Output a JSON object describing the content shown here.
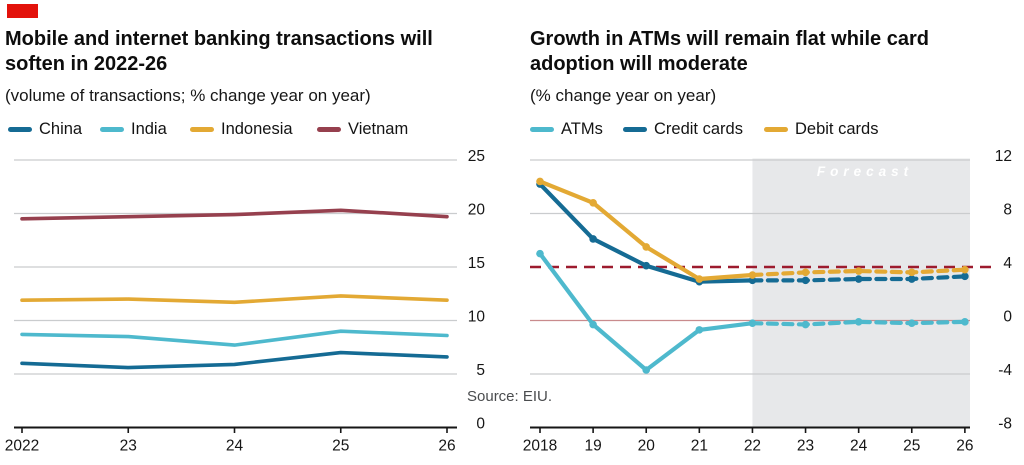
{
  "logo_color": "#E3120B",
  "source": "Source: EIU.",
  "colors": {
    "grid": "#CACCCE",
    "axis": "#161616",
    "forecast_fill": "#E7E8EA"
  },
  "chart_data": [
    {
      "type": "line",
      "title": "Mobile and internet banking transactions will soften in 2022-26",
      "subtitle": "(volume of transactions; % change year on year)",
      "xlabel": "",
      "ylabel": "",
      "categories": [
        "2022",
        "23",
        "24",
        "25",
        "26"
      ],
      "ylim": [
        0,
        25
      ],
      "yticks": [
        0,
        5,
        10,
        15,
        20,
        25
      ],
      "grid": true,
      "legend_position": "top",
      "series": [
        {
          "name": "China",
          "color": "#156B94",
          "values": [
            6.0,
            5.6,
            5.9,
            7.0,
            6.6
          ]
        },
        {
          "name": "India",
          "color": "#4EB9CD",
          "values": [
            8.7,
            8.5,
            7.7,
            9.0,
            8.6
          ]
        },
        {
          "name": "Indonesia",
          "color": "#E3A934",
          "values": [
            11.9,
            12.0,
            11.7,
            12.3,
            11.9
          ]
        },
        {
          "name": "Vietnam",
          "color": "#96404E",
          "values": [
            19.5,
            19.7,
            19.9,
            20.3,
            19.7
          ]
        }
      ]
    },
    {
      "type": "line",
      "title": "Growth in ATMs will remain flat while card adoption will moderate",
      "subtitle": "(% change year on year)",
      "xlabel": "",
      "ylabel": "",
      "categories": [
        "2018",
        "19",
        "20",
        "21",
        "22",
        "23",
        "24",
        "25",
        "26"
      ],
      "ylim": [
        -8,
        12
      ],
      "yticks": [
        -8,
        -4,
        0,
        4,
        8,
        12
      ],
      "grid": true,
      "legend_position": "top",
      "zero_line_color": "#C98B8D",
      "reference_line": {
        "value": 4,
        "color": "#9D1B2E",
        "style": "dashed"
      },
      "forecast": {
        "label": "Forecast",
        "from_category": "22"
      },
      "series": [
        {
          "name": "ATMs",
          "color": "#4EB9CD",
          "values": [
            5.0,
            -0.3,
            -3.7,
            -0.7,
            -0.2,
            -0.3,
            -0.1,
            -0.2,
            -0.1
          ],
          "markers": true,
          "dashed_from_index": 4
        },
        {
          "name": "Credit cards",
          "color": "#156B94",
          "values": [
            10.2,
            6.1,
            4.1,
            2.9,
            3.0,
            3.0,
            3.1,
            3.1,
            3.3
          ],
          "markers": true,
          "dashed_from_index": 4
        },
        {
          "name": "Debit cards",
          "color": "#E3A934",
          "values": [
            10.4,
            8.8,
            5.5,
            3.1,
            3.4,
            3.6,
            3.7,
            3.6,
            3.8
          ],
          "markers": true,
          "dashed_from_index": 4
        }
      ]
    }
  ]
}
